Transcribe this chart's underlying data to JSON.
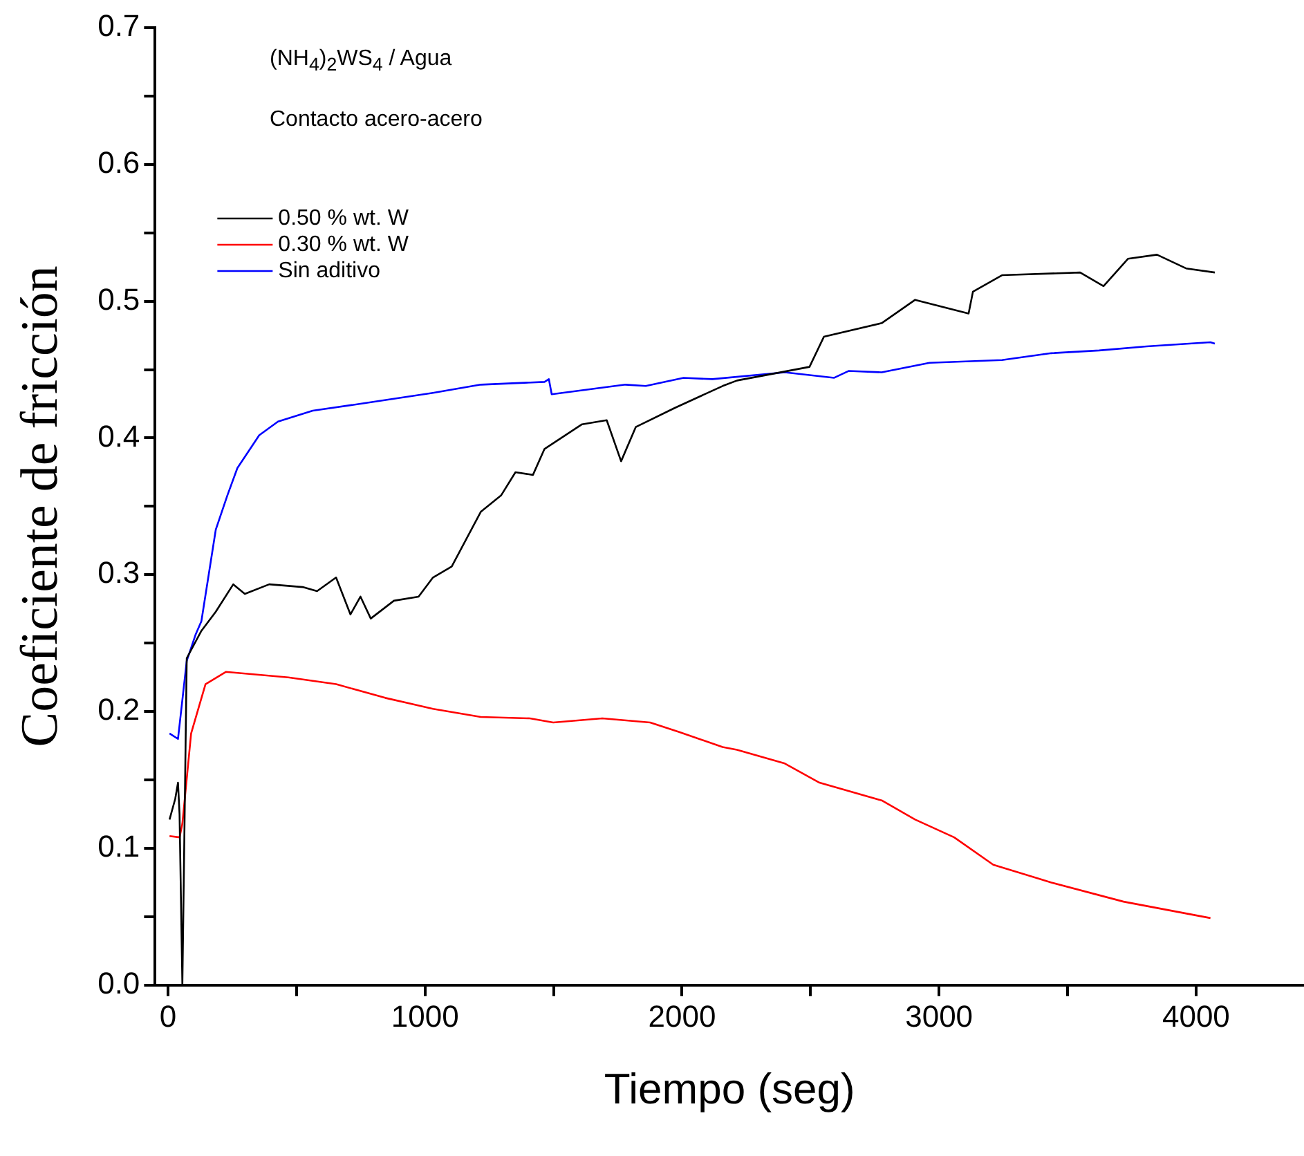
{
  "chart_data": {
    "type": "line",
    "xlabel": "Tiempo (seg)",
    "ylabel": "Coeficiente de fricción",
    "annotations": [
      "(NH$_{4}$)$_{2}$WS$_{4}$ / Agua",
      "Contacto acero-acero"
    ],
    "xlim": [
      -50,
      4420
    ],
    "xticks": [
      0,
      {
        "value": 500,
        "label": null
      },
      1000,
      {
        "value": 1500,
        "label": null
      },
      2000,
      {
        "value": 2500,
        "label": null
      },
      3000,
      {
        "value": 3500,
        "label": null
      },
      4000
    ],
    "ylim": [
      0,
      0.7
    ],
    "yticks": [
      {
        "value": 0,
        "label": "0.0"
      },
      {
        "value": 0.05,
        "label": null
      },
      0.1,
      {
        "value": 0.15,
        "label": null
      },
      0.2,
      {
        "value": 0.25,
        "label": null
      },
      0.3,
      {
        "value": 0.35,
        "label": null
      },
      0.4,
      {
        "value": 0.45,
        "label": null
      },
      0.5,
      {
        "value": 0.55,
        "label": null
      },
      0.6,
      {
        "value": 0.65,
        "label": null
      },
      0.7
    ],
    "grid": false,
    "legend": "top left",
    "marker": "none",
    "line_style": "solid",
    "series": [
      {
        "name": "0.50 % wt. W",
        "color": "#000000",
        "x": [
          6,
          28,
          39,
          45,
          56,
          73,
          130,
          186,
          254,
          299,
          394,
          524,
          580,
          654,
          710,
          749,
          789,
          879,
          975,
          1031,
          1104,
          1217,
          1296,
          1352,
          1420,
          1465,
          1611,
          1707,
          1763,
          1820,
          1972,
          2158,
          2214,
          2496,
          2552,
          2777,
          2907,
          3115,
          3132,
          3245,
          3549,
          3640,
          3735,
          3848,
          3961,
          4073
        ],
        "values": [
          0.121,
          0.136,
          0.148,
          0.125,
          0.0,
          0.239,
          0.259,
          0.273,
          0.293,
          0.286,
          0.293,
          0.291,
          0.288,
          0.298,
          0.271,
          0.284,
          0.268,
          0.281,
          0.284,
          0.298,
          0.306,
          0.346,
          0.358,
          0.375,
          0.373,
          0.392,
          0.41,
          0.413,
          0.383,
          0.408,
          0.422,
          0.438,
          0.442,
          0.452,
          0.474,
          0.484,
          0.501,
          0.491,
          0.507,
          0.519,
          0.521,
          0.511,
          0.531,
          0.534,
          0.524,
          0.521
        ]
      },
      {
        "name": "0.30 % wt. W",
        "color": "#ff0000",
        "x": [
          6,
          45,
          56,
          90,
          146,
          225,
          468,
          654,
          845,
          1031,
          1217,
          1408,
          1499,
          1690,
          1876,
          1989,
          2158,
          2214,
          2400,
          2535,
          2777,
          2907,
          3059,
          3211,
          3437,
          3718,
          4056
        ],
        "values": [
          0.109,
          0.108,
          0.118,
          0.184,
          0.22,
          0.229,
          0.225,
          0.22,
          0.21,
          0.202,
          0.196,
          0.195,
          0.192,
          0.195,
          0.192,
          0.185,
          0.174,
          0.172,
          0.162,
          0.148,
          0.135,
          0.121,
          0.108,
          0.088,
          0.075,
          0.061,
          0.049
        ]
      },
      {
        "name": "Sin aditivo",
        "color": "#0000ff",
        "x": [
          6,
          39,
          73,
          107,
          130,
          186,
          231,
          270,
          355,
          428,
          563,
          749,
          1031,
          1217,
          1465,
          1482,
          1493,
          1780,
          1859,
          2006,
          2118,
          2400,
          2592,
          2648,
          2777,
          2963,
          3245,
          3437,
          3623,
          3808,
          4056,
          4073
        ],
        "values": [
          0.184,
          0.18,
          0.237,
          0.256,
          0.266,
          0.333,
          0.358,
          0.378,
          0.402,
          0.412,
          0.42,
          0.425,
          0.433,
          0.439,
          0.441,
          0.443,
          0.432,
          0.439,
          0.438,
          0.444,
          0.443,
          0.448,
          0.444,
          0.449,
          0.448,
          0.455,
          0.457,
          0.462,
          0.464,
          0.467,
          0.47,
          0.469
        ]
      }
    ]
  }
}
